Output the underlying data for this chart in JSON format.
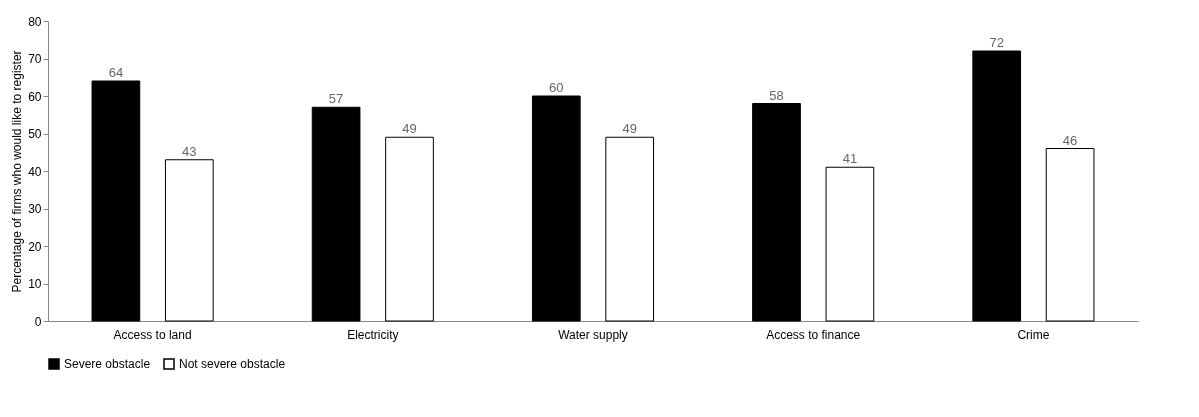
{
  "chart_data": {
    "type": "bar",
    "ylabel": "Percentage of firms who would like to register",
    "categories": [
      "Access to land",
      "Electricity",
      "Water supply",
      "Access to finance",
      "Crime"
    ],
    "series": [
      {
        "name": "Severe obstacle",
        "color": "#000000",
        "values": [
          64,
          57,
          60,
          58,
          72
        ]
      },
      {
        "name": "Not severe obstacle",
        "color": "#ffffff",
        "values": [
          43,
          49,
          49,
          41,
          46
        ]
      }
    ],
    "ylim": [
      0,
      80
    ],
    "yticks": [
      0,
      10,
      20,
      30,
      40,
      50,
      60,
      70,
      80
    ],
    "grid": false,
    "legend": "bottom",
    "data_labels": true
  }
}
